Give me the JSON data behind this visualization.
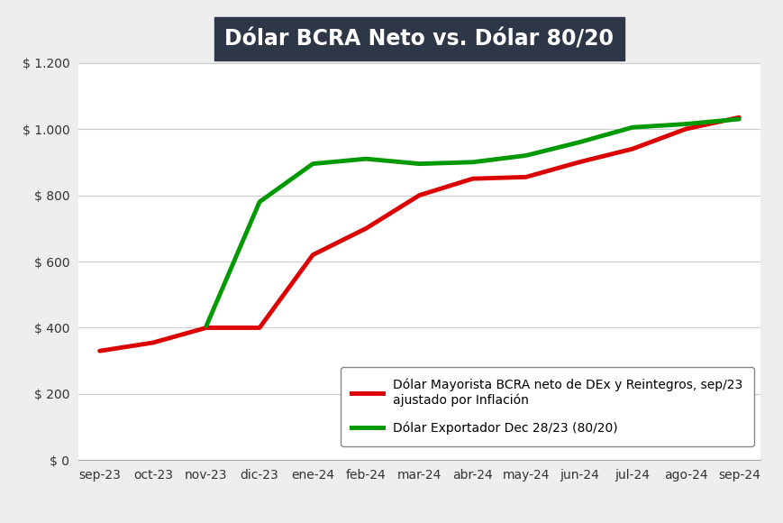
{
  "title": "Dólar BCRA Neto vs. Dólar 80/20",
  "x_labels": [
    "sep-23",
    "oct-23",
    "nov-23",
    "dic-23",
    "ene-24",
    "feb-24",
    "mar-24",
    "abr-24",
    "may-24",
    "jun-24",
    "jul-24",
    "ago-24",
    "sep-24"
  ],
  "red_line": {
    "label": "Dólar Mayorista BCRA neto de DEx y Reintegros, sep/23\najustado por Inflación",
    "color": "#dd0000",
    "values": [
      330,
      355,
      400,
      400,
      620,
      700,
      800,
      850,
      855,
      900,
      940,
      1000,
      1035
    ]
  },
  "green_line": {
    "label": "Dólar Exportador Dec 28/23 (80/20)",
    "color": "#009900",
    "values": [
      null,
      null,
      405,
      780,
      895,
      910,
      895,
      900,
      920,
      960,
      1005,
      1015,
      1030
    ]
  },
  "ylim": [
    0,
    1200
  ],
  "yticks": [
    0,
    200,
    400,
    600,
    800,
    1000,
    1200
  ],
  "background_color": "#eeeeee",
  "plot_background": "#ffffff",
  "title_box_color": "#2d3748",
  "title_text_color": "#ffffff",
  "title_fontsize": 17,
  "line_width": 3.5,
  "grid_color": "#cccccc",
  "tick_fontsize": 10,
  "legend_fontsize": 10
}
